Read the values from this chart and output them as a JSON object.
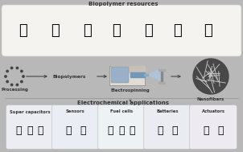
{
  "title_top": "Biopolymer resources",
  "title_mid": "Electrochemical applications",
  "label_electrospinning": "Electrospinning",
  "label_nanofibers": "Nanofibers",
  "label_processing": "Processing",
  "label_biopolymers": "Biopolymers",
  "applications": [
    "Super capacitors",
    "Sensors",
    "Fuel cells",
    "Batteries",
    "Actuators"
  ],
  "bg_color": "#b8b8b8",
  "top_box_color": "#f5f3f0",
  "app_box_color": "#f0efec",
  "arrow_color": "#444444",
  "title_fontsize": 5.0,
  "label_fontsize": 4.2,
  "app_label_fontsize": 3.8,
  "separator_line_color": "#888888",
  "nano_bg": "#555555",
  "nano_line": "#cccccc"
}
